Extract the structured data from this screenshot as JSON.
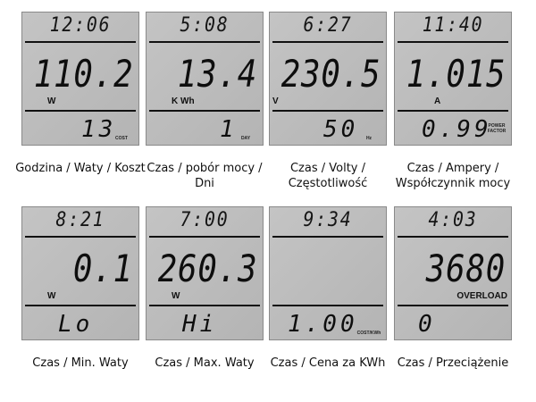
{
  "panels": [
    {
      "time": "12:06",
      "main": "110.2",
      "unit": "W",
      "bottom": "13",
      "bottom_label": "COST",
      "caption": "Godzina / Waty / Koszt"
    },
    {
      "time": "5:08",
      "main": "13.4",
      "unit": "K Wh",
      "bottom": "1",
      "bottom_label": "DAY",
      "caption": "Czas / pobór mocy / Dni"
    },
    {
      "time": "6:27",
      "main": "230.5",
      "unit": "V",
      "bottom": "50",
      "bottom_label": "Hz",
      "caption": "Czas / Volty / Częstotliwość"
    },
    {
      "time": "11:40",
      "main": "1.015",
      "unit": "A",
      "bottom": "0.99",
      "bottom_label": "POWER FACTOR",
      "caption": "Czas / Ampery / Współczynnik mocy"
    },
    {
      "time": "8:21",
      "main": "0.1",
      "unit": "W",
      "bottom": "Lo",
      "bottom_label": "",
      "caption": "Czas / Min. Waty"
    },
    {
      "time": "7:00",
      "main": "260.3",
      "unit": "W",
      "bottom": "Hi",
      "bottom_label": "",
      "caption": "Czas / Max. Waty"
    },
    {
      "time": "9:34",
      "main": "",
      "unit": "",
      "bottom": "1.00",
      "bottom_label": "COST/KWh",
      "caption": "Czas / Cena za KWh"
    },
    {
      "time": "4:03",
      "main": "3680",
      "unit": "OVERLOAD",
      "bottom": "0",
      "bottom_label": "",
      "caption": "Czas / Przeciążenie"
    }
  ]
}
